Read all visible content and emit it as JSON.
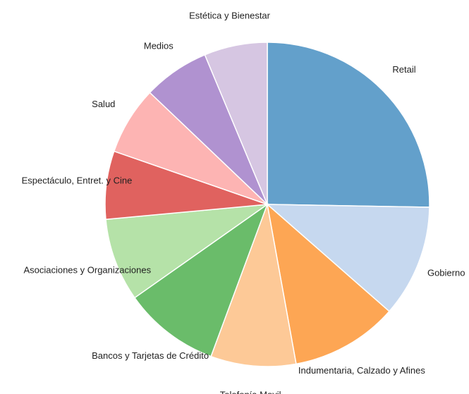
{
  "chart_data": {
    "type": "pie",
    "categories": [
      "Retail",
      "Gobierno",
      "Indumentaria, Calzado y Afines",
      "Telefonía Movil",
      "Bancos y Tarjetas de Crédito",
      "Asociaciones y Organizaciones",
      "Espectáculo, Entret. y Cine",
      "Salud",
      "Medios",
      "Estética y Bienestar"
    ],
    "values": [
      25.3,
      11.2,
      10.7,
      8.5,
      9.6,
      8.3,
      6.8,
      6.8,
      6.6,
      6.3
    ],
    "colors": [
      "#63a0cb",
      "#c6d8ef",
      "#fda654",
      "#fdc997",
      "#6abc6a",
      "#b5e2a8",
      "#e0625f",
      "#fdb4b3",
      "#b092d0",
      "#d6c6e2"
    ]
  }
}
